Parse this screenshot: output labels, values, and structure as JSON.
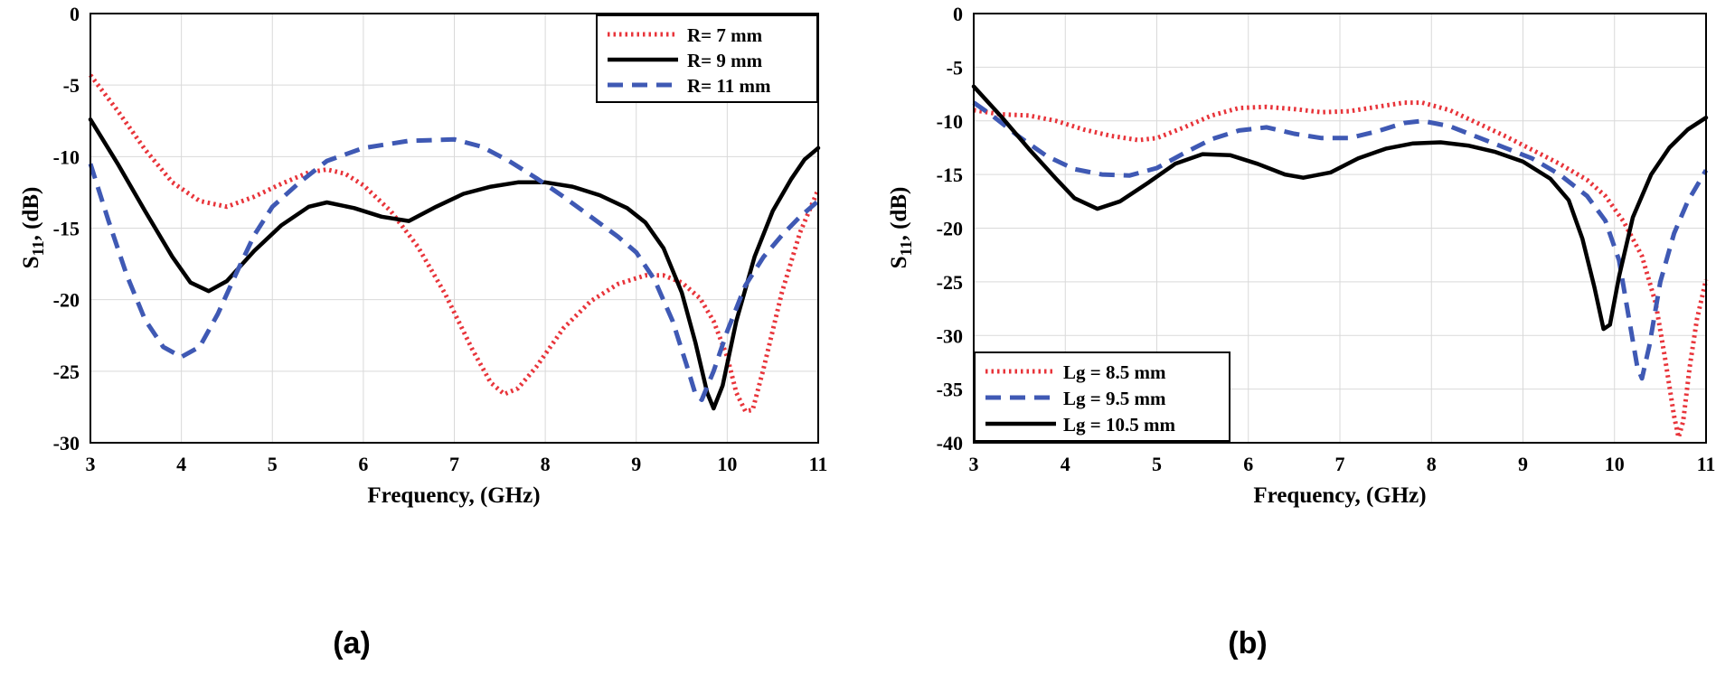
{
  "chart_data": [
    {
      "type": "line",
      "panel_label": "(a)",
      "xlabel": "Frequency, (GHz)",
      "ylabel_main": "S",
      "ylabel_sub": "11",
      "ylabel_rest": ", (dB)",
      "xlim": [
        3,
        11
      ],
      "ylim": [
        -30,
        0
      ],
      "xticks": [
        3,
        4,
        5,
        6,
        7,
        8,
        9,
        10,
        11
      ],
      "yticks": [
        0,
        -5,
        -10,
        -15,
        -20,
        -25,
        -30
      ],
      "grid": true,
      "legend_position": "top-right",
      "series": [
        {
          "name": "R= 7 mm",
          "color": "#e8343a",
          "style": "dotted",
          "points": [
            [
              3,
              -4.3
            ],
            [
              3.3,
              -6.8
            ],
            [
              3.6,
              -9.5
            ],
            [
              3.9,
              -11.8
            ],
            [
              4.2,
              -13.1
            ],
            [
              4.5,
              -13.5
            ],
            [
              4.8,
              -12.8
            ],
            [
              5.1,
              -11.9
            ],
            [
              5.4,
              -11.1
            ],
            [
              5.6,
              -10.9
            ],
            [
              5.8,
              -11.2
            ],
            [
              6.0,
              -12.0
            ],
            [
              6.3,
              -13.8
            ],
            [
              6.6,
              -16.3
            ],
            [
              6.9,
              -19.6
            ],
            [
              7.2,
              -23.5
            ],
            [
              7.4,
              -25.8
            ],
            [
              7.55,
              -26.6
            ],
            [
              7.7,
              -26.2
            ],
            [
              7.9,
              -24.7
            ],
            [
              8.2,
              -22.0
            ],
            [
              8.5,
              -20.1
            ],
            [
              8.8,
              -18.9
            ],
            [
              9.1,
              -18.3
            ],
            [
              9.3,
              -18.3
            ],
            [
              9.5,
              -18.8
            ],
            [
              9.7,
              -19.9
            ],
            [
              9.85,
              -21.5
            ],
            [
              10.0,
              -24.0
            ],
            [
              10.1,
              -26.5
            ],
            [
              10.2,
              -27.8
            ],
            [
              10.28,
              -27.7
            ],
            [
              10.4,
              -24.8
            ],
            [
              10.6,
              -19.5
            ],
            [
              10.8,
              -15.3
            ],
            [
              11,
              -12.3
            ]
          ]
        },
        {
          "name": "R= 9 mm",
          "color": "#000000",
          "style": "solid",
          "points": [
            [
              3,
              -7.4
            ],
            [
              3.3,
              -10.5
            ],
            [
              3.6,
              -13.8
            ],
            [
              3.9,
              -17.0
            ],
            [
              4.1,
              -18.8
            ],
            [
              4.3,
              -19.4
            ],
            [
              4.5,
              -18.7
            ],
            [
              4.8,
              -16.6
            ],
            [
              5.1,
              -14.8
            ],
            [
              5.4,
              -13.5
            ],
            [
              5.6,
              -13.2
            ],
            [
              5.9,
              -13.6
            ],
            [
              6.2,
              -14.2
            ],
            [
              6.5,
              -14.5
            ],
            [
              6.8,
              -13.5
            ],
            [
              7.1,
              -12.6
            ],
            [
              7.4,
              -12.1
            ],
            [
              7.7,
              -11.8
            ],
            [
              8.0,
              -11.8
            ],
            [
              8.3,
              -12.1
            ],
            [
              8.6,
              -12.7
            ],
            [
              8.9,
              -13.6
            ],
            [
              9.1,
              -14.6
            ],
            [
              9.3,
              -16.4
            ],
            [
              9.5,
              -19.5
            ],
            [
              9.65,
              -23.0
            ],
            [
              9.78,
              -26.5
            ],
            [
              9.85,
              -27.6
            ],
            [
              9.95,
              -26.0
            ],
            [
              10.1,
              -21.5
            ],
            [
              10.3,
              -17.0
            ],
            [
              10.5,
              -13.8
            ],
            [
              10.7,
              -11.6
            ],
            [
              10.85,
              -10.2
            ],
            [
              11,
              -9.4
            ]
          ]
        },
        {
          "name": "R= 11 mm",
          "color": "#3f59b4",
          "style": "dashed",
          "points": [
            [
              3,
              -10.5
            ],
            [
              3.2,
              -14.5
            ],
            [
              3.4,
              -18.3
            ],
            [
              3.6,
              -21.4
            ],
            [
              3.8,
              -23.3
            ],
            [
              4.0,
              -24.0
            ],
            [
              4.2,
              -23.3
            ],
            [
              4.4,
              -21.0
            ],
            [
              4.6,
              -18.2
            ],
            [
              4.8,
              -15.5
            ],
            [
              5.0,
              -13.5
            ],
            [
              5.3,
              -11.8
            ],
            [
              5.6,
              -10.3
            ],
            [
              6.0,
              -9.4
            ],
            [
              6.5,
              -8.9
            ],
            [
              7.0,
              -8.8
            ],
            [
              7.3,
              -9.3
            ],
            [
              7.6,
              -10.3
            ],
            [
              7.9,
              -11.5
            ],
            [
              8.2,
              -12.8
            ],
            [
              8.5,
              -14.2
            ],
            [
              8.8,
              -15.6
            ],
            [
              9.0,
              -16.7
            ],
            [
              9.2,
              -18.6
            ],
            [
              9.4,
              -21.5
            ],
            [
              9.55,
              -24.5
            ],
            [
              9.65,
              -26.6
            ],
            [
              9.72,
              -27.0
            ],
            [
              9.85,
              -25.0
            ],
            [
              10.0,
              -22.2
            ],
            [
              10.2,
              -19.0
            ],
            [
              10.4,
              -17.0
            ],
            [
              10.6,
              -15.5
            ],
            [
              10.8,
              -14.2
            ],
            [
              11,
              -13.1
            ]
          ]
        }
      ]
    },
    {
      "type": "line",
      "panel_label": "(b)",
      "xlabel": "Frequency, (GHz)",
      "ylabel_main": "S",
      "ylabel_sub": "11",
      "ylabel_rest": ", (dB)",
      "xlim": [
        3,
        11
      ],
      "ylim": [
        -40,
        0
      ],
      "xticks": [
        3,
        4,
        5,
        6,
        7,
        8,
        9,
        10,
        11
      ],
      "yticks": [
        0,
        -5,
        -10,
        -15,
        -20,
        -25,
        -30,
        -35,
        -40
      ],
      "grid": true,
      "legend_position": "bottom-left",
      "series": [
        {
          "name": "Lg = 8.5 mm",
          "color": "#e8343a",
          "style": "dotted",
          "points": [
            [
              3,
              -9.0
            ],
            [
              3.3,
              -9.4
            ],
            [
              3.6,
              -9.5
            ],
            [
              3.9,
              -10.0
            ],
            [
              4.2,
              -10.8
            ],
            [
              4.5,
              -11.4
            ],
            [
              4.8,
              -11.8
            ],
            [
              5.0,
              -11.6
            ],
            [
              5.3,
              -10.6
            ],
            [
              5.6,
              -9.5
            ],
            [
              5.9,
              -8.8
            ],
            [
              6.2,
              -8.7
            ],
            [
              6.5,
              -8.9
            ],
            [
              6.8,
              -9.2
            ],
            [
              7.1,
              -9.1
            ],
            [
              7.4,
              -8.7
            ],
            [
              7.7,
              -8.3
            ],
            [
              7.9,
              -8.3
            ],
            [
              8.2,
              -9.0
            ],
            [
              8.5,
              -10.2
            ],
            [
              8.8,
              -11.4
            ],
            [
              9.1,
              -12.7
            ],
            [
              9.4,
              -14.0
            ],
            [
              9.7,
              -15.5
            ],
            [
              9.9,
              -17.0
            ],
            [
              10.1,
              -19.4
            ],
            [
              10.3,
              -22.6
            ],
            [
              10.45,
              -27.0
            ],
            [
              10.55,
              -32.0
            ],
            [
              10.65,
              -37.5
            ],
            [
              10.7,
              -39.5
            ],
            [
              10.75,
              -38.0
            ],
            [
              10.82,
              -33.0
            ],
            [
              10.9,
              -28.5
            ],
            [
              11,
              -24.8
            ]
          ]
        },
        {
          "name": "Lg = 9.5 mm",
          "color": "#3f59b4",
          "style": "dashed",
          "points": [
            [
              3,
              -8.3
            ],
            [
              3.2,
              -9.5
            ],
            [
              3.5,
              -11.5
            ],
            [
              3.8,
              -13.3
            ],
            [
              4.1,
              -14.5
            ],
            [
              4.4,
              -15.0
            ],
            [
              4.7,
              -15.1
            ],
            [
              5.0,
              -14.4
            ],
            [
              5.3,
              -13.0
            ],
            [
              5.6,
              -11.7
            ],
            [
              5.9,
              -10.9
            ],
            [
              6.2,
              -10.6
            ],
            [
              6.5,
              -11.2
            ],
            [
              6.8,
              -11.6
            ],
            [
              7.1,
              -11.6
            ],
            [
              7.4,
              -11.0
            ],
            [
              7.7,
              -10.2
            ],
            [
              7.9,
              -10.0
            ],
            [
              8.2,
              -10.5
            ],
            [
              8.5,
              -11.5
            ],
            [
              8.8,
              -12.5
            ],
            [
              9.1,
              -13.5
            ],
            [
              9.4,
              -15.0
            ],
            [
              9.7,
              -17.0
            ],
            [
              9.9,
              -19.3
            ],
            [
              10.05,
              -23.0
            ],
            [
              10.15,
              -28.0
            ],
            [
              10.25,
              -33.0
            ],
            [
              10.3,
              -34.0
            ],
            [
              10.38,
              -31.0
            ],
            [
              10.5,
              -25.0
            ],
            [
              10.65,
              -20.5
            ],
            [
              10.8,
              -17.5
            ],
            [
              11,
              -14.6
            ]
          ]
        },
        {
          "name": "Lg = 10.5 mm",
          "color": "#000000",
          "style": "solid",
          "points": [
            [
              3,
              -6.8
            ],
            [
              3.3,
              -9.6
            ],
            [
              3.6,
              -12.6
            ],
            [
              3.9,
              -15.4
            ],
            [
              4.1,
              -17.2
            ],
            [
              4.35,
              -18.2
            ],
            [
              4.6,
              -17.5
            ],
            [
              4.9,
              -15.8
            ],
            [
              5.2,
              -14.0
            ],
            [
              5.5,
              -13.1
            ],
            [
              5.8,
              -13.2
            ],
            [
              6.1,
              -14.0
            ],
            [
              6.4,
              -15.0
            ],
            [
              6.6,
              -15.3
            ],
            [
              6.9,
              -14.8
            ],
            [
              7.2,
              -13.5
            ],
            [
              7.5,
              -12.6
            ],
            [
              7.8,
              -12.1
            ],
            [
              8.1,
              -12.0
            ],
            [
              8.4,
              -12.3
            ],
            [
              8.7,
              -12.9
            ],
            [
              9.0,
              -13.8
            ],
            [
              9.3,
              -15.4
            ],
            [
              9.5,
              -17.4
            ],
            [
              9.65,
              -21.0
            ],
            [
              9.78,
              -25.5
            ],
            [
              9.88,
              -29.4
            ],
            [
              9.95,
              -29.0
            ],
            [
              10.05,
              -24.5
            ],
            [
              10.2,
              -19.0
            ],
            [
              10.4,
              -15.0
            ],
            [
              10.6,
              -12.5
            ],
            [
              10.8,
              -10.8
            ],
            [
              11,
              -9.7
            ]
          ]
        }
      ]
    }
  ]
}
